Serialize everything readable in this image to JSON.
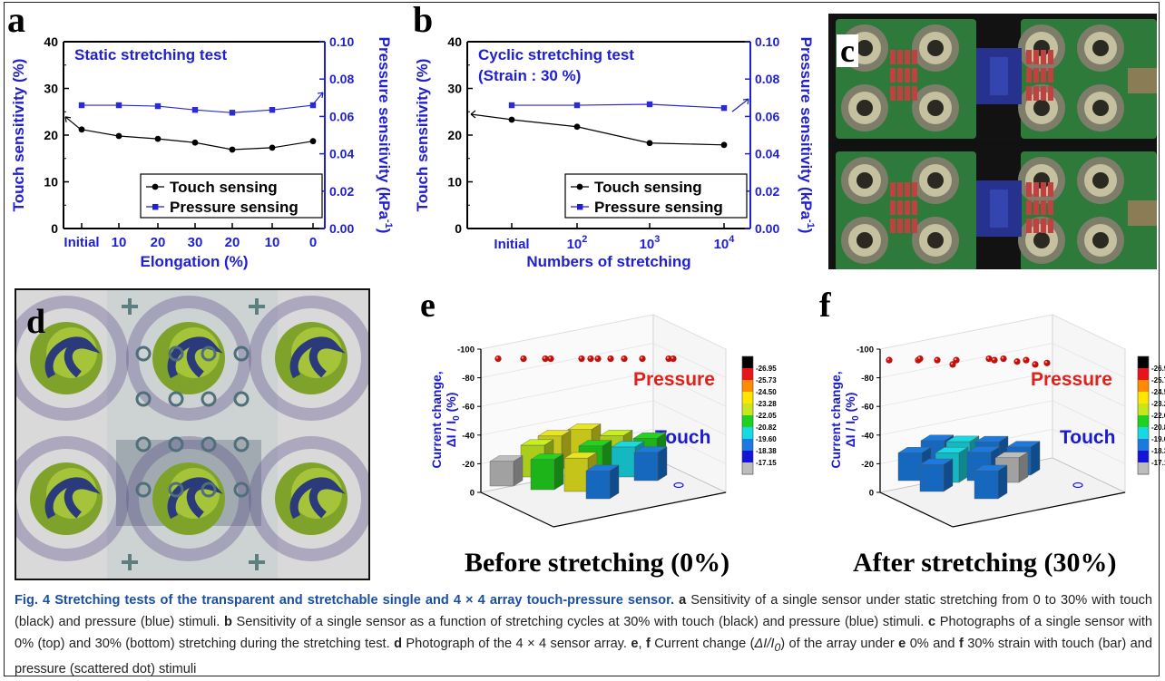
{
  "panels": {
    "a": {
      "letter": "a"
    },
    "b": {
      "letter": "b"
    },
    "c": {
      "letter": "c"
    },
    "d": {
      "letter": "d"
    },
    "e": {
      "letter": "e"
    },
    "f": {
      "letter": "f"
    }
  },
  "chart_data": [
    {
      "id": "a",
      "type": "line",
      "title": "Static stretching test",
      "xlabel": "Elongation (%)",
      "ylabel_left": "Touch sensitivity (%)",
      "ylabel_right": "Pressure sensitivity (kPa",
      "ylabel_right_sup": "-1",
      "ylabel_right_close": ")",
      "categories": [
        "Initial",
        "10",
        "20",
        "30",
        "20",
        "10",
        "0"
      ],
      "ylim_left": [
        0,
        40
      ],
      "ylim_right": [
        0.0,
        0.1
      ],
      "yticks_left": [
        "0",
        "10",
        "20",
        "30",
        "40"
      ],
      "yticks_right": [
        "0.00",
        "0.02",
        "0.04",
        "0.06",
        "0.08",
        "0.10"
      ],
      "series": [
        {
          "name": "Touch sensing",
          "axis": "left",
          "color": "#000000",
          "marker": "circle",
          "values": [
            21.2,
            19.8,
            19.2,
            18.4,
            16.9,
            17.3,
            18.7
          ]
        },
        {
          "name": "Pressure sensing",
          "axis": "right",
          "color": "#2a2ad6",
          "marker": "square",
          "values": [
            0.066,
            0.066,
            0.0655,
            0.0635,
            0.062,
            0.0635,
            0.066
          ]
        }
      ],
      "legend": "bottom-right"
    },
    {
      "id": "b",
      "type": "line",
      "title": "Cyclic stretching test",
      "subtitle": "(Strain : 30 %)",
      "xlabel": "Numbers of stretching",
      "ylabel_left": "Touch sensitivity (%)",
      "ylabel_right": "Pressure sensitivity (kPa",
      "ylabel_right_sup": "-1",
      "ylabel_right_close": ")",
      "categories": [
        {
          "base": "Initial",
          "exp": ""
        },
        {
          "base": "10",
          "exp": "2"
        },
        {
          "base": "10",
          "exp": "3"
        },
        {
          "base": "10",
          "exp": "4"
        }
      ],
      "ylim_left": [
        0,
        40
      ],
      "ylim_right": [
        0.0,
        0.1
      ],
      "yticks_left": [
        "0",
        "10",
        "20",
        "30",
        "40"
      ],
      "yticks_right": [
        "0.00",
        "0.02",
        "0.04",
        "0.06",
        "0.08",
        "0.10"
      ],
      "series": [
        {
          "name": "Touch sensing",
          "axis": "left",
          "color": "#000000",
          "marker": "circle",
          "values": [
            23.3,
            21.8,
            18.3,
            17.9
          ]
        },
        {
          "name": "Pressure sensing",
          "axis": "right",
          "color": "#2a2ad6",
          "marker": "square",
          "values": [
            0.066,
            0.066,
            0.0665,
            0.0645
          ]
        }
      ],
      "legend": "bottom-right"
    },
    {
      "id": "e",
      "type": "bar3d",
      "zlabel": "Current change,",
      "zlabel2": "ΔI / I",
      "zlabel2_sub": "0",
      "zlabel2_unit": " (%)",
      "zticks": [
        "0",
        "-20",
        "-40",
        "-60",
        "-80",
        "-100"
      ],
      "pressure_label": "Pressure",
      "touch_label": "Touch",
      "title": "Before stretching (0%)",
      "colorbar": [
        "-26.95",
        "-25.73",
        "-24.50",
        "-23.28",
        "-22.05",
        "-20.82",
        "-19.60",
        "-18.38",
        "-17.15"
      ],
      "pressure_values": [
        -99,
        -99,
        -99,
        -99,
        -99,
        -99,
        -99,
        -99,
        -99,
        -99,
        -99,
        -99
      ],
      "touch_values": [
        -24.2,
        -23.5,
        -22.4,
        -21.8,
        -22.1,
        -21.6,
        -20.9,
        -19.7,
        -17.2,
        -21.0,
        -23.3,
        -19.5
      ]
    },
    {
      "id": "f",
      "type": "bar3d",
      "zlabel": "Current change,",
      "zlabel2": "ΔI / I",
      "zlabel2_sub": "0",
      "zlabel2_unit": " (%)",
      "zticks": [
        "0",
        "-20",
        "-40",
        "-60",
        "-80",
        "-100"
      ],
      "pressure_label": "Pressure",
      "touch_label": "Touch",
      "title": "After stretching (30%)",
      "colorbar": [
        "-26.9",
        "-25.7",
        "-24.5",
        "-23.2",
        "-22.0",
        "-20.8",
        "-19.6",
        "-18.3",
        "-17.1"
      ],
      "pressure_values": [
        -98,
        -98,
        -99,
        -98,
        -95,
        -98,
        -99,
        -98,
        -99,
        -97,
        -98,
        -95,
        -96
      ],
      "touch_values": [
        -19.0,
        -20.8,
        -19.4,
        -19.7,
        -19.3,
        -20.6,
        -19.8,
        -17.2,
        -18.8,
        -19.5
      ]
    }
  ],
  "caption": {
    "fig": "Fig. 4",
    "title": "Stretching tests of the transparent and stretchable single and 4 × 4 array touch-pressure sensor.",
    "a_label": "a",
    "a_text": " Sensitivity of a single sensor under static stretching from 0 to 30% with touch (black) and pressure (blue) stimuli. ",
    "b_label": "b",
    "b_text": " Sensitivity of a single sensor as a function of stretching cycles at 30% with touch (black) and pressure (blue) stimuli. ",
    "c_label": "c",
    "c_text": " Photographs of a single sensor with 0% (top) and 30% (bottom) stretching during the stretching test. ",
    "d_label": "d",
    "d_text": " Photograph of the 4 × 4 sensor array. ",
    "ef_label": "e",
    "ef_comma": ", ",
    "f_label": "f",
    "ef_text1": " Current change (",
    "ef_delta": "ΔI/I",
    "ef_sub": "0",
    "ef_text2": ") of the array under ",
    "e_label2": "e",
    "ef_text3": " 0% and ",
    "f_label2": "f",
    "ef_text4": " 30% strain with touch (bar) and pressure (scattered dot) stimuli"
  },
  "colors": {
    "blue_axis": "#2020d0",
    "caption_blue": "#1b4fa0",
    "board_green": "#2e7a3a",
    "pressure_red": "#e0201a",
    "touch_blue": "#1a1ad0"
  }
}
